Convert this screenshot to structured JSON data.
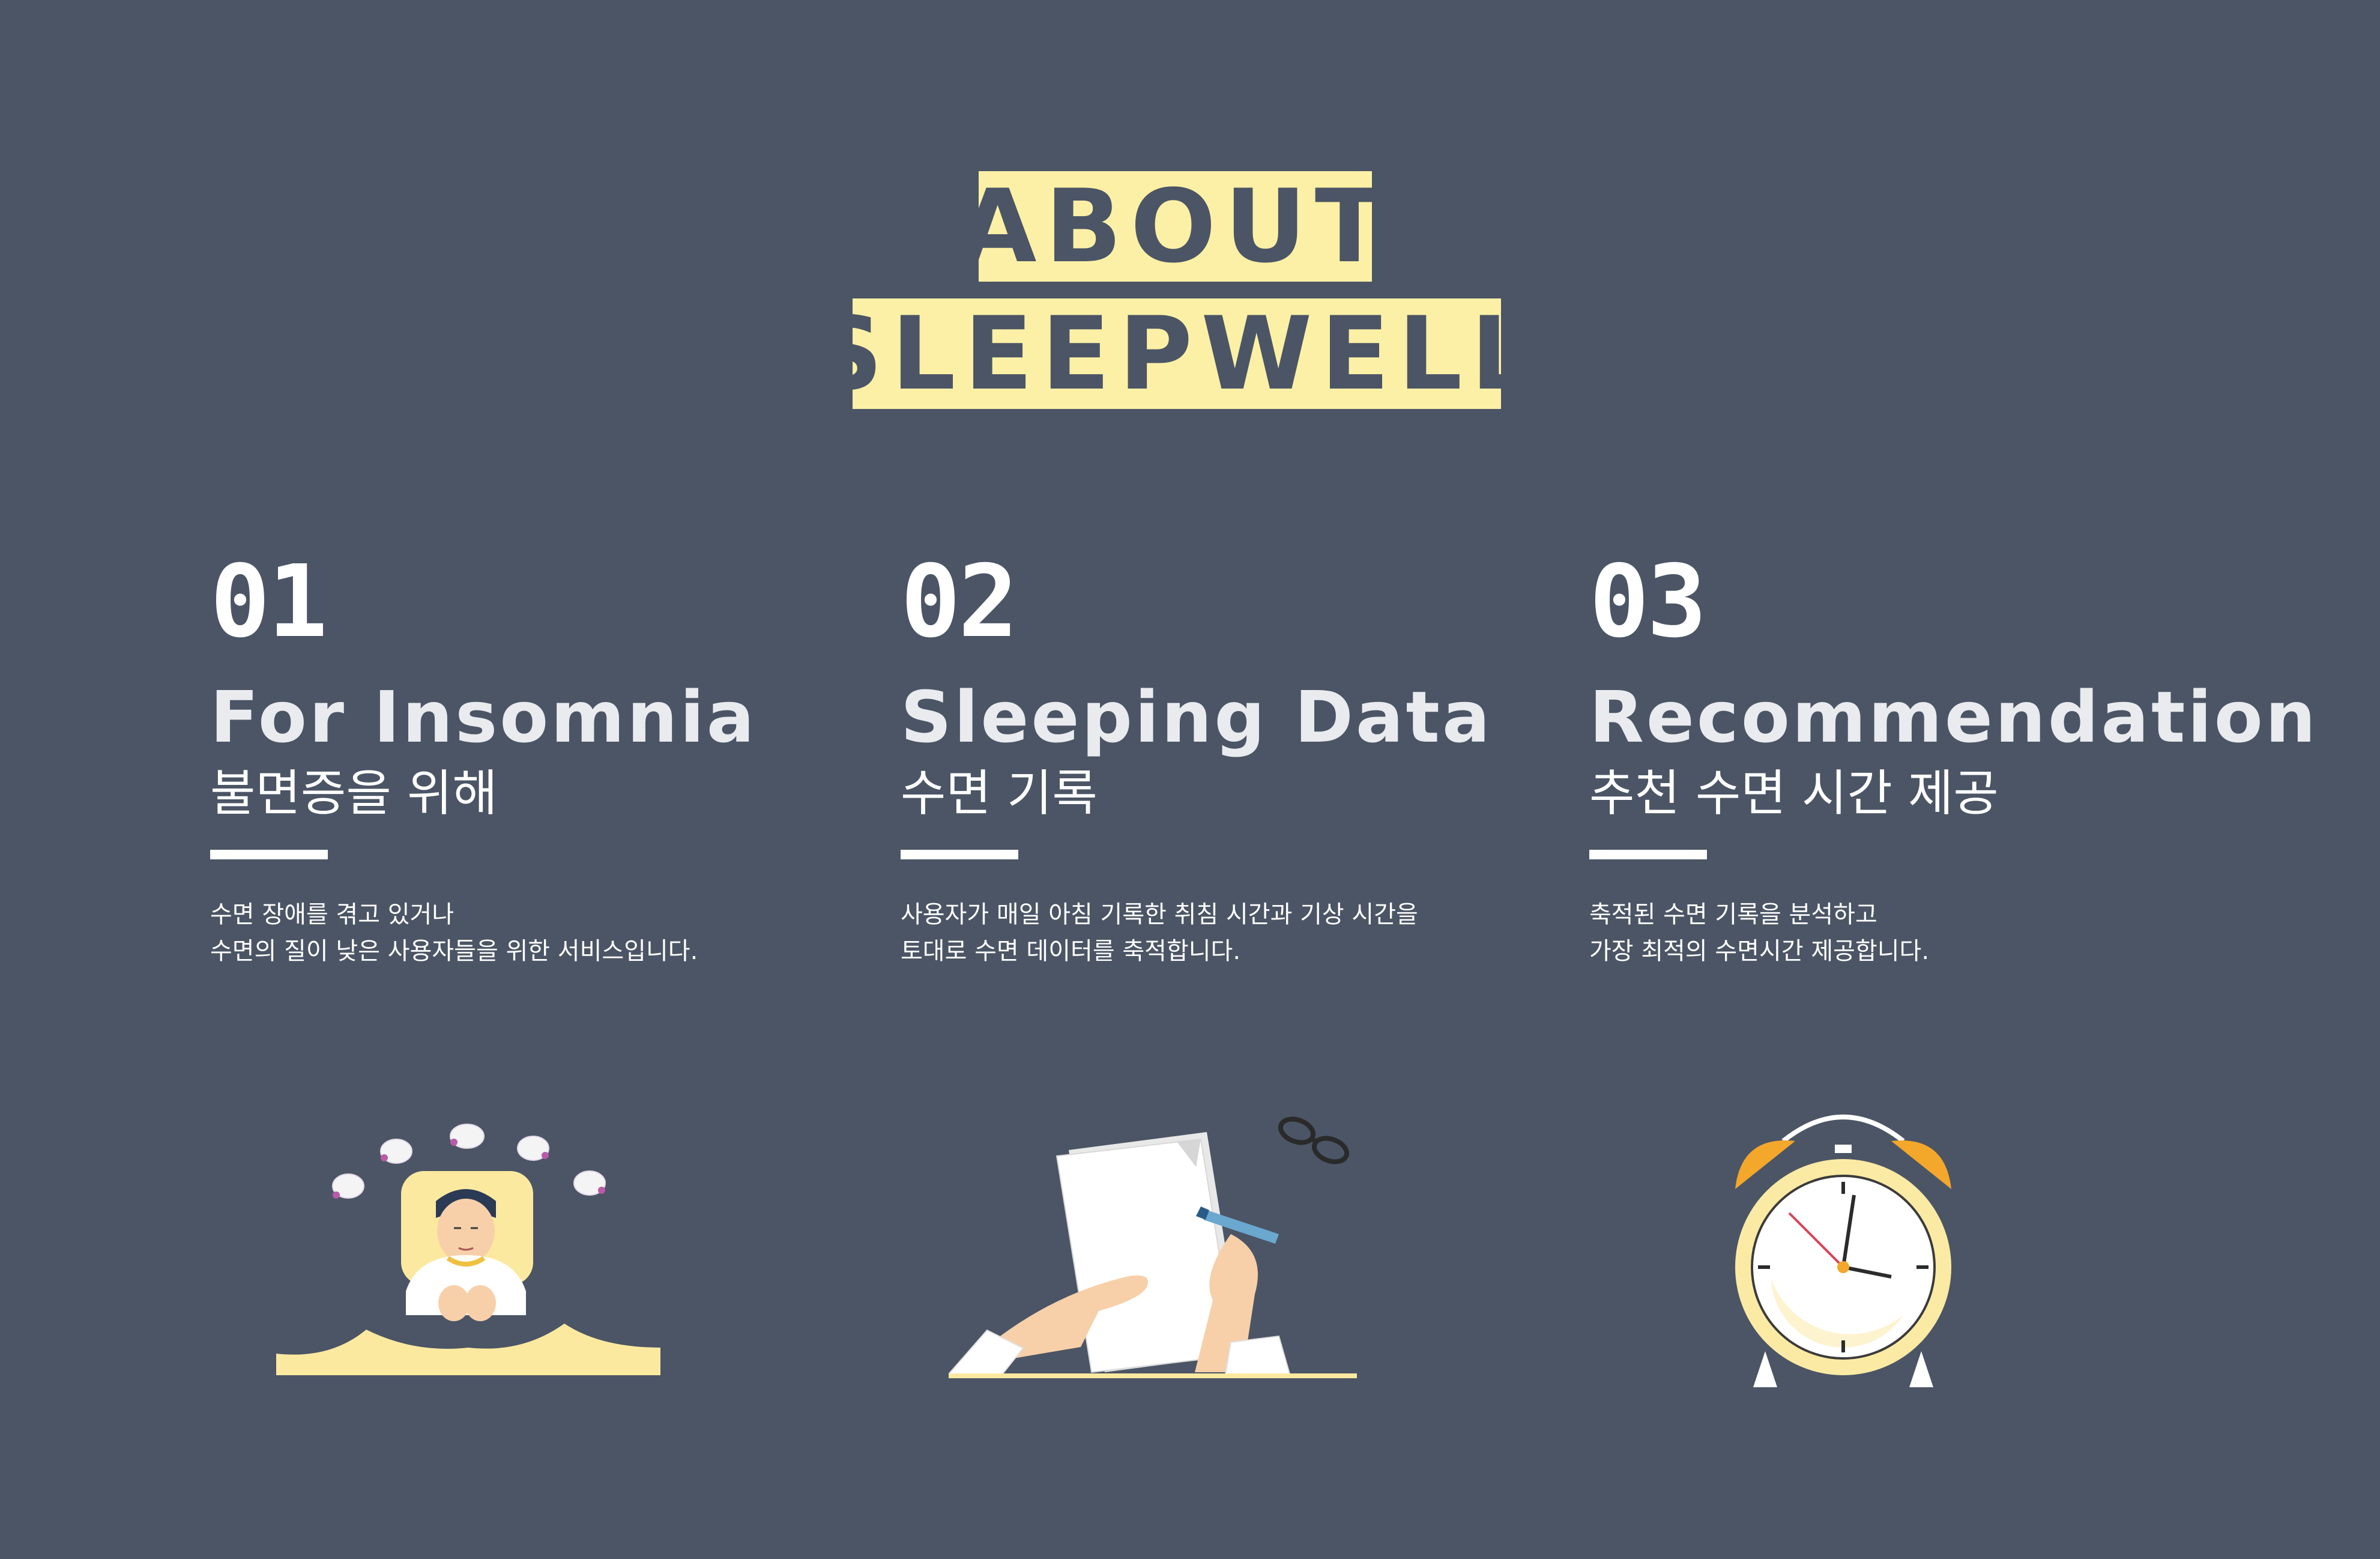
{
  "header": {
    "title_line1": "ABOUT",
    "title_line2": "SLEEPWELL"
  },
  "columns": [
    {
      "number": "01",
      "title_en": "For Insomnia",
      "title_ko": "불면증을 위해",
      "description": [
        "수면 장애를 겪고 있거나",
        "수면의 질이 낮은 사용자들을 위한 서비스입니다."
      ],
      "illustration_icon": "sleepless-man-with-sheep-icon"
    },
    {
      "number": "02",
      "title_en": "Sleeping Data",
      "title_ko": "수면 기록",
      "description": [
        "사용자가 매일 아침 기록한 취침 시간과 기상 시간을",
        "토대로 수면 데이터를 축적합니다."
      ],
      "illustration_icon": "writing-notes-icon"
    },
    {
      "number": "03",
      "title_en": "Recommendation",
      "title_ko": "추천 수면 시간 제공",
      "description": [
        "축적된 수면 기록을 분석하고",
        "가장 최적의 수면시간 제공합니다."
      ],
      "illustration_icon": "alarm-clock-icon"
    }
  ],
  "colors": {
    "background": "#4b5565",
    "accent": "#fcf0a6",
    "text": "#ffffff"
  }
}
